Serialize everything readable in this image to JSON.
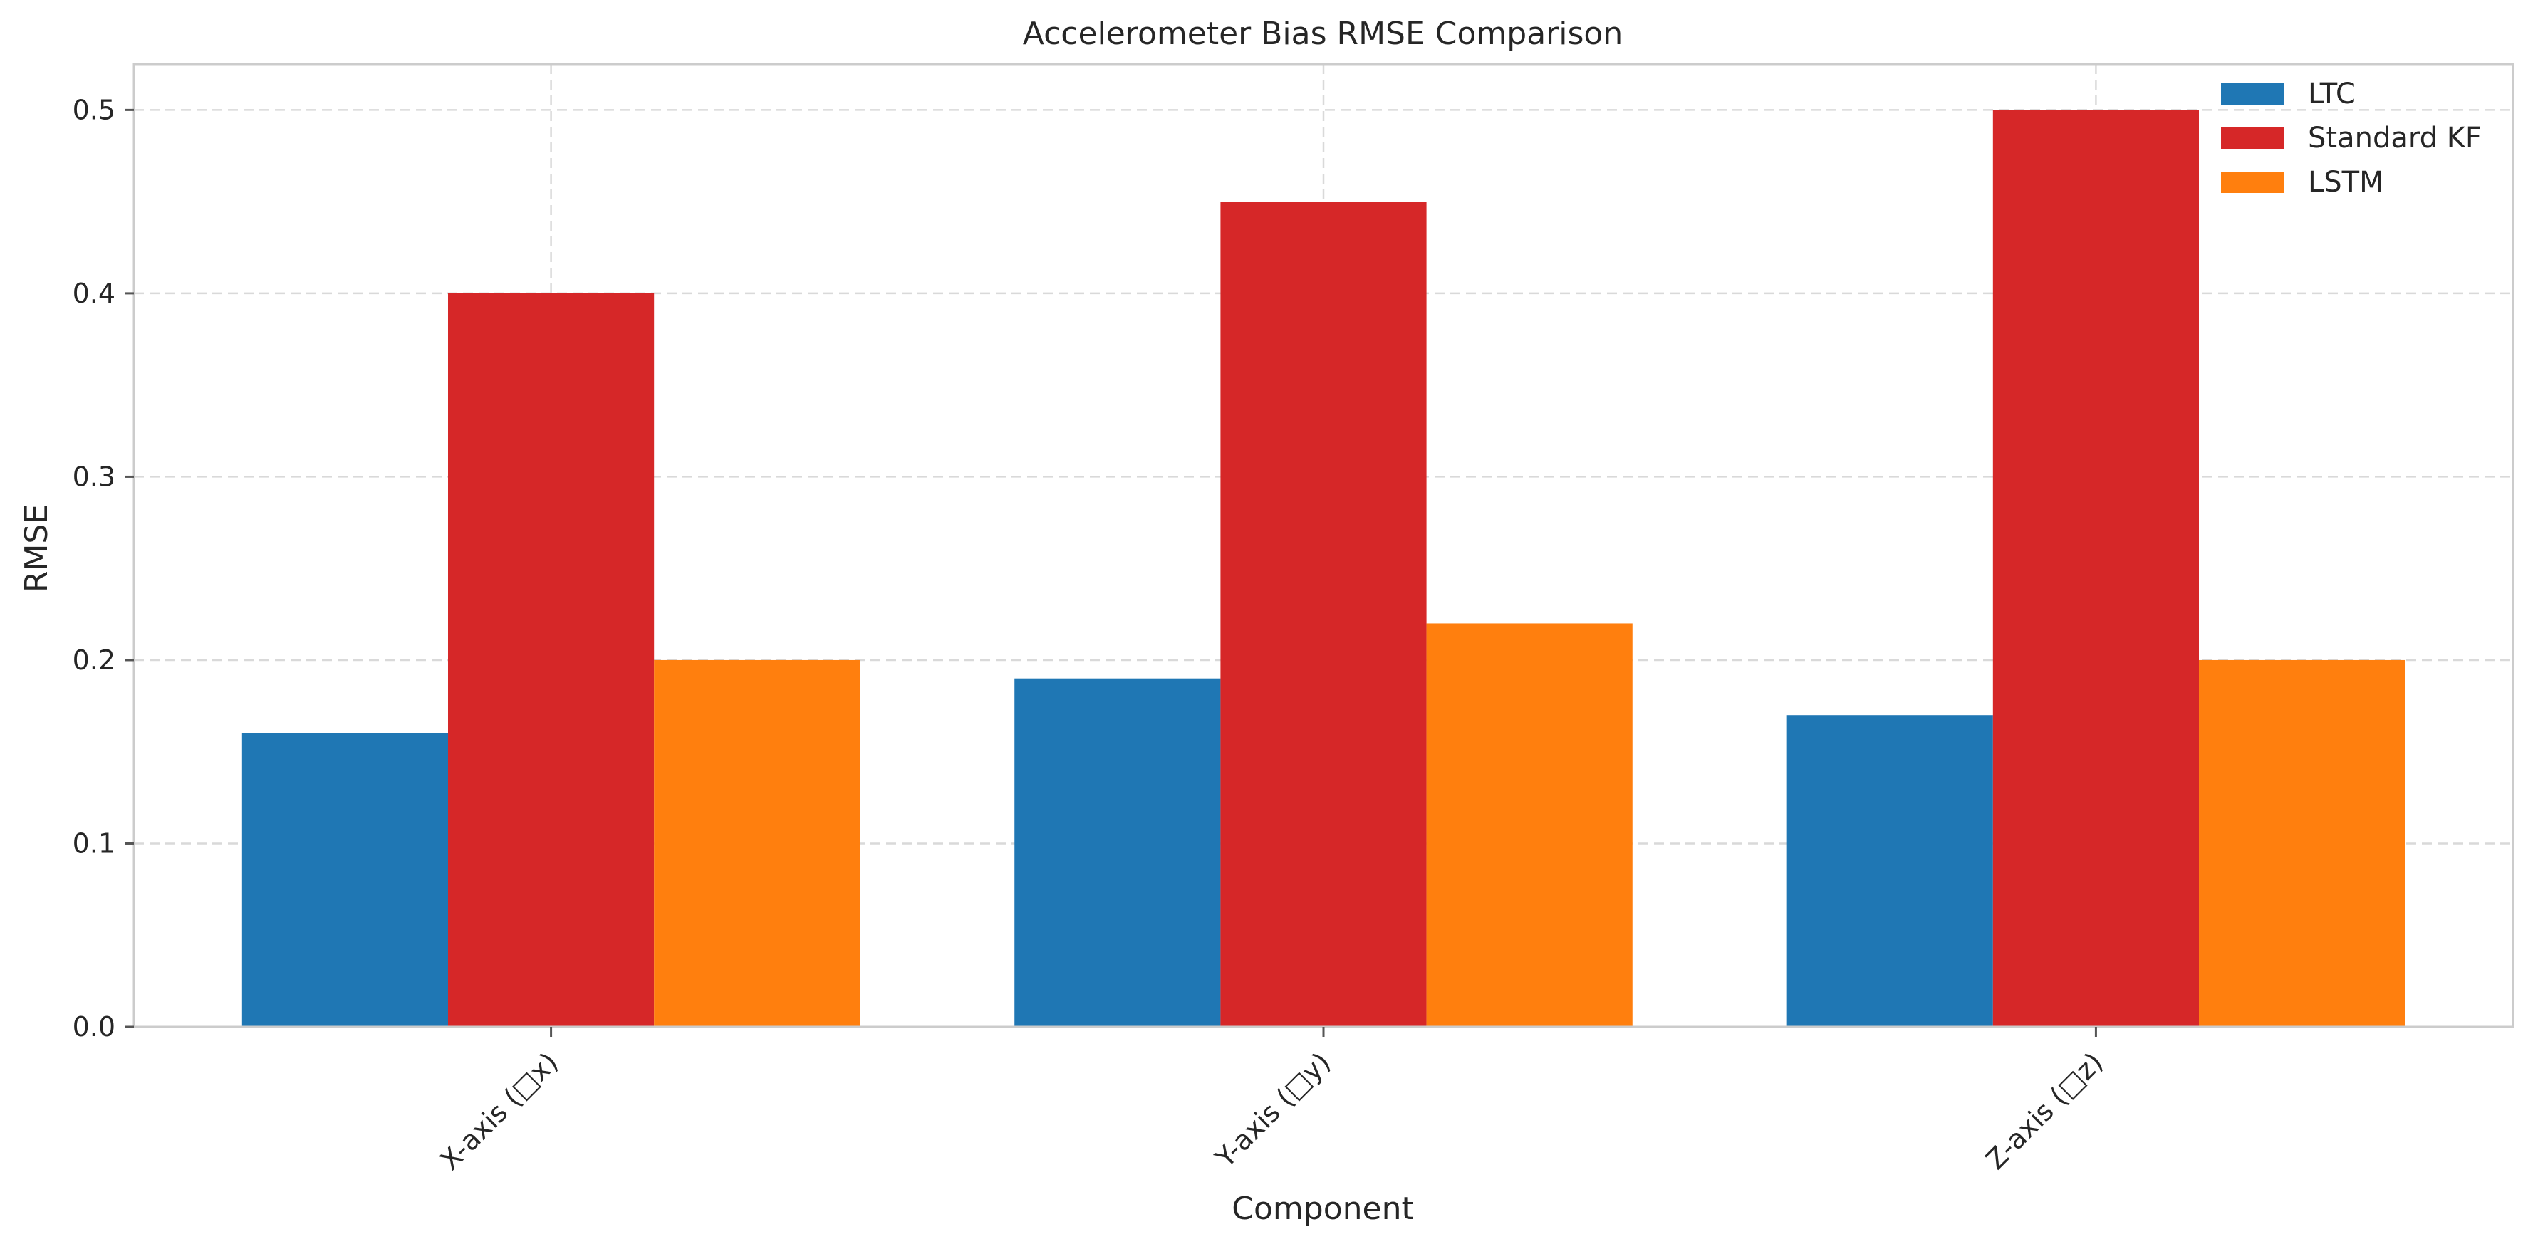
{
  "chart_data": {
    "type": "bar",
    "title": "Accelerometer Bias RMSE Comparison",
    "xlabel": "Component",
    "ylabel": "RMSE",
    "categories": [
      "X-axis (□x)",
      "Y-axis (□y)",
      "Z-axis (□z)"
    ],
    "series": [
      {
        "name": "LTC",
        "color": "#1f77b4",
        "values": [
          0.16,
          0.19,
          0.17
        ]
      },
      {
        "name": "Standard KF",
        "color": "#d62728",
        "values": [
          0.4,
          0.45,
          0.5
        ]
      },
      {
        "name": "LSTM",
        "color": "#ff7f0e",
        "values": [
          0.2,
          0.22,
          0.2
        ]
      }
    ],
    "ylim": [
      0,
      0.525
    ],
    "yticks": [
      "0.0",
      "0.1",
      "0.2",
      "0.3",
      "0.4",
      "0.5"
    ],
    "ytick_values": [
      0.0,
      0.1,
      0.2,
      0.3,
      0.4,
      0.5
    ],
    "grid": true,
    "legend_position": "top-right"
  }
}
